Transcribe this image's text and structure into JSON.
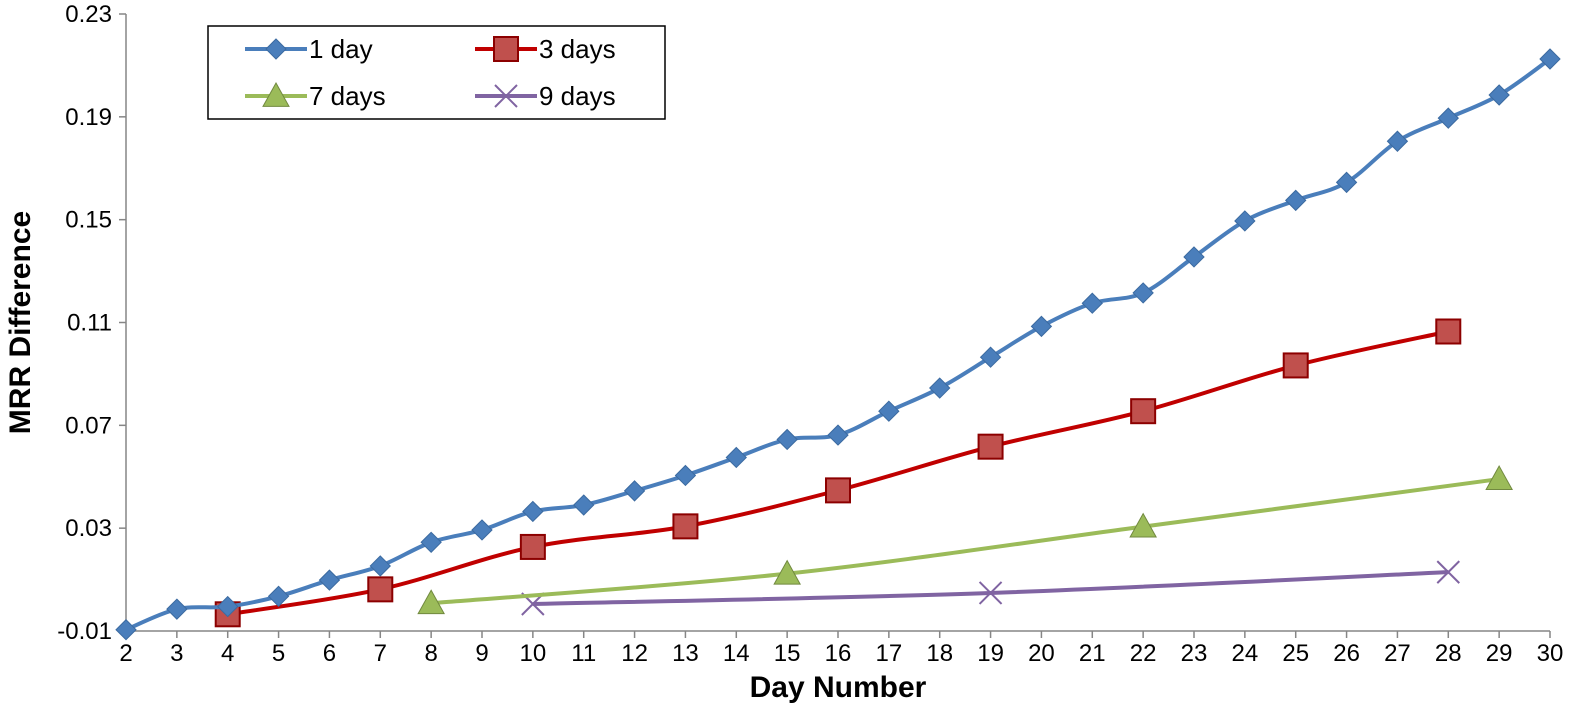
{
  "chart_data": {
    "type": "line",
    "title": "",
    "xlabel": "Day Number",
    "ylabel": "MRR Difference",
    "xlim": [
      2,
      30
    ],
    "ylim": [
      -0.01,
      0.23
    ],
    "x_ticks": [
      "2",
      "3",
      "4",
      "5",
      "6",
      "7",
      "8",
      "9",
      "10",
      "11",
      "12",
      "13",
      "14",
      "15",
      "16",
      "17",
      "18",
      "19",
      "20",
      "21",
      "22",
      "23",
      "24",
      "25",
      "26",
      "27",
      "28",
      "29",
      "30"
    ],
    "y_ticks": [
      "-0.01",
      "0.03",
      "0.07",
      "0.11",
      "0.15",
      "0.19",
      "0.23"
    ],
    "grid": false,
    "legend_position": "top-left",
    "series": [
      {
        "name": "1 day",
        "color": "#4A7EBB",
        "marker": "diamond",
        "x": [
          2,
          3,
          4,
          5,
          6,
          7,
          8,
          9,
          10,
          11,
          12,
          13,
          14,
          15,
          16,
          17,
          18,
          19,
          20,
          21,
          22,
          23,
          24,
          25,
          26,
          27,
          28,
          29,
          30
        ],
        "y": [
          -0.0095,
          -0.0015,
          -0.0005,
          0.0035,
          0.0098,
          0.0153,
          0.0245,
          0.0293,
          0.0365,
          0.039,
          0.0445,
          0.0505,
          0.0575,
          0.0645,
          0.0662,
          0.0755,
          0.0845,
          0.0965,
          0.1085,
          0.1175,
          0.1215,
          0.1355,
          0.1495,
          0.1575,
          0.1645,
          0.1805,
          0.1895,
          0.1985,
          0.2125
        ]
      },
      {
        "name": "3 days",
        "color": "#C00000",
        "marker": "square",
        "x": [
          4,
          7,
          10,
          13,
          16,
          19,
          22,
          25,
          28
        ],
        "y": [
          -0.0035,
          0.0062,
          0.0227,
          0.0307,
          0.0447,
          0.0617,
          0.0755,
          0.0933,
          0.1065
        ]
      },
      {
        "name": "7 days",
        "color": "#9BBB59",
        "marker": "triangle",
        "x": [
          8,
          15,
          22,
          29
        ],
        "y": [
          0.0008,
          0.0123,
          0.0306,
          0.0491
        ]
      },
      {
        "name": "9 days",
        "color": "#8064A2",
        "marker": "x",
        "x": [
          10,
          19,
          28
        ],
        "y": [
          0.0005,
          0.0048,
          0.0129
        ]
      }
    ]
  }
}
